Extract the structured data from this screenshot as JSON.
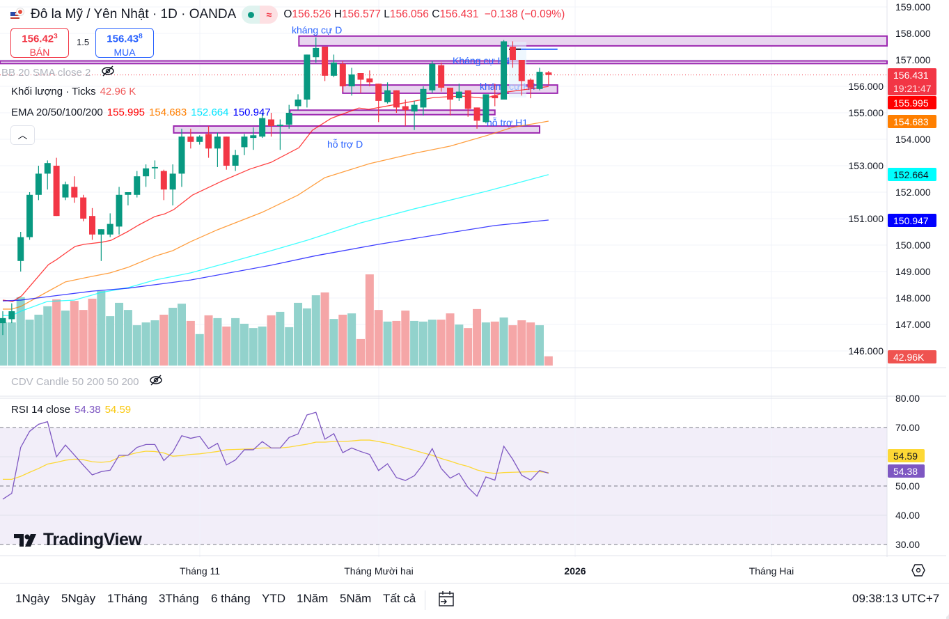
{
  "header": {
    "symbol_title": "Đô la Mỹ / Yên Nhật · 1D · OANDA",
    "market_status_icon": "green-dot-icon",
    "data_mode_icon": "approx-icon",
    "ohlc": {
      "o_label": "O",
      "o": "156.526",
      "h_label": "H",
      "h": "156.577",
      "l_label": "L",
      "l": "156.056",
      "c_label": "C",
      "c": "156.431",
      "change": "−0.138 (−0.09%)"
    }
  },
  "trade": {
    "sell_price": "156.42",
    "sell_sup": "3",
    "sell_label": "BÁN",
    "spread": "1.5",
    "buy_price": "156.43",
    "buy_sup": "8",
    "buy_label": "MUA"
  },
  "legend": {
    "bb": "BB 20 SMA close 2",
    "volume_name": "Khối lượng · Ticks",
    "volume_value": "42.96 K",
    "ema_name": "EMA 20/50/100/200",
    "ema20": "155.995",
    "ema50": "154.683",
    "ema100": "152.664",
    "ema200": "150.947",
    "cdv": "CDV Candle 50 200 50 200",
    "rsi_name": "RSI 14 close",
    "rsi_value": "54.38",
    "rsi_ma_value": "54.59"
  },
  "price_tags": {
    "last_price": "156.431",
    "countdown": "19:21:47",
    "ema20": "155.995",
    "ema50": "154.683",
    "ema100": "152.664",
    "ema200": "150.947",
    "volume": "42.96K",
    "rsi_ma": "54.59",
    "rsi": "54.38"
  },
  "colors": {
    "up": "#089981",
    "down": "#f23645",
    "vol_up": "#92d2cc",
    "vol_down": "#f5a6a7",
    "ema20": "#ff0000",
    "ema50": "#ff7f00",
    "ema100": "#00ffff",
    "ema200": "#0000ff",
    "rsi": "#7e57c2",
    "rsi_ma": "#fdd835",
    "zone": "#9c27b0",
    "zone_fill": "#e8d5ef",
    "annot_text": "#2962ff"
  },
  "time_axis": {
    "labels": [
      "Tháng 11",
      "Tháng Mười hai",
      "2026",
      "Tháng Hai"
    ]
  },
  "toolbar": {
    "ranges": [
      "1Ngày",
      "5Ngày",
      "1Tháng",
      "3Tháng",
      "6 tháng",
      "YTD",
      "1Năm",
      "5Năm",
      "Tất cả"
    ],
    "clock": "09:38:13 UTC+7"
  },
  "logo": "TradingView",
  "chart_data": {
    "type": "candlestick",
    "title": "Đô la Mỹ / Yên Nhật · 1D · OANDA",
    "price_axis": {
      "ticks": [
        "159.000",
        "158.000",
        "157.000",
        "156.000",
        "155.000",
        "154.000",
        "153.000",
        "152.000",
        "151.000",
        "150.000",
        "149.000",
        "148.000",
        "147.000",
        "146.000"
      ],
      "ylim": [
        145.6,
        159.25
      ]
    },
    "candles_ohlc": [
      [
        147.05,
        147.5,
        146.6,
        147.24
      ],
      [
        147.2,
        147.8,
        147.05,
        147.5
      ],
      [
        149.4,
        150.5,
        149.0,
        150.3
      ],
      [
        150.3,
        152.0,
        150.2,
        151.9
      ],
      [
        151.9,
        153.0,
        151.7,
        152.7
      ],
      [
        152.7,
        153.2,
        152.1,
        153.1
      ],
      [
        153.0,
        153.3,
        151.1,
        151.1
      ],
      [
        151.8,
        152.4,
        151.7,
        152.3
      ],
      [
        152.2,
        152.6,
        151.6,
        151.8
      ],
      [
        151.8,
        151.9,
        150.9,
        151.0
      ],
      [
        151.1,
        151.4,
        150.2,
        150.4
      ],
      [
        150.4,
        150.6,
        149.4,
        150.6
      ],
      [
        150.4,
        151.2,
        150.3,
        150.8
      ],
      [
        150.7,
        152.2,
        150.4,
        151.9
      ],
      [
        151.9,
        152.0,
        151.5,
        152.0
      ],
      [
        151.9,
        152.8,
        151.8,
        152.6
      ],
      [
        152.6,
        153.05,
        152.2,
        152.9
      ],
      [
        152.9,
        153.2,
        152.5,
        152.95
      ],
      [
        152.8,
        152.85,
        151.7,
        152.1
      ],
      [
        152.1,
        153.05,
        151.5,
        152.7
      ],
      [
        152.7,
        154.4,
        152.2,
        154.1
      ],
      [
        154.1,
        154.4,
        153.65,
        153.9
      ],
      [
        153.9,
        154.15,
        153.8,
        154.1
      ],
      [
        154.2,
        154.5,
        153.3,
        153.65
      ],
      [
        153.65,
        154.25,
        152.95,
        154.1
      ],
      [
        154.1,
        154.1,
        152.85,
        153.0
      ],
      [
        153.0,
        153.6,
        152.8,
        153.4
      ],
      [
        153.7,
        154.2,
        153.4,
        154.1
      ],
      [
        154.05,
        154.45,
        153.6,
        154.15
      ],
      [
        154.1,
        155.0,
        154.05,
        154.8
      ],
      [
        154.75,
        155.0,
        154.1,
        154.5
      ],
      [
        154.5,
        154.75,
        153.6,
        154.55
      ],
      [
        154.55,
        155.3,
        154.4,
        155.0
      ],
      [
        155.25,
        155.7,
        155.1,
        155.5
      ],
      [
        155.5,
        157.2,
        155.2,
        157.2
      ],
      [
        157.1,
        157.85,
        156.9,
        157.45
      ],
      [
        157.5,
        157.5,
        156.2,
        156.4
      ],
      [
        156.4,
        157.2,
        156.35,
        156.9
      ],
      [
        156.85,
        156.95,
        155.8,
        156.0
      ],
      [
        156.0,
        156.7,
        155.65,
        156.45
      ],
      [
        156.5,
        156.5,
        155.75,
        156.25
      ],
      [
        156.3,
        156.6,
        156.0,
        156.15
      ],
      [
        156.1,
        156.1,
        154.65,
        155.45
      ],
      [
        155.4,
        156.15,
        155.35,
        155.85
      ],
      [
        155.85,
        155.85,
        155.0,
        155.2
      ],
      [
        155.25,
        155.5,
        154.5,
        155.1
      ],
      [
        155.05,
        155.45,
        154.35,
        155.3
      ],
      [
        155.2,
        156.0,
        154.9,
        155.9
      ],
      [
        155.85,
        156.95,
        155.75,
        156.85
      ],
      [
        156.8,
        156.9,
        155.8,
        155.95
      ],
      [
        155.95,
        155.95,
        154.9,
        155.5
      ],
      [
        155.55,
        156.1,
        155.45,
        155.8
      ],
      [
        155.85,
        155.85,
        154.85,
        155.15
      ],
      [
        155.2,
        155.2,
        154.4,
        154.7
      ],
      [
        154.65,
        155.7,
        154.6,
        155.7
      ],
      [
        155.65,
        156.1,
        155.25,
        155.55
      ],
      [
        155.5,
        157.75,
        155.5,
        157.7
      ],
      [
        157.5,
        157.7,
        156.7,
        157.0
      ],
      [
        157.0,
        157.0,
        155.65,
        156.2
      ],
      [
        156.25,
        156.3,
        155.55,
        155.95
      ],
      [
        155.9,
        156.7,
        155.85,
        156.55
      ],
      [
        156.526,
        156.577,
        156.056,
        156.431
      ]
    ],
    "volume_k": [
      200,
      200,
      317,
      213,
      236,
      275,
      307,
      255,
      300,
      258,
      310,
      346,
      229,
      291,
      258,
      187,
      200,
      210,
      236,
      268,
      287,
      207,
      146,
      233,
      220,
      181,
      220,
      194,
      174,
      181,
      233,
      249,
      178,
      291,
      265,
      326,
      339,
      216,
      236,
      242,
      123,
      423,
      258,
      204,
      207,
      255,
      207,
      204,
      213,
      213,
      242,
      190,
      174,
      262,
      200,
      204,
      223,
      187,
      210,
      200,
      187,
      42.96
    ],
    "ema": [
      {
        "name": "EMA 20",
        "points": [
          [
            0,
            147.92
          ],
          [
            1.1,
            147.87
          ],
          [
            2.1,
            148.08
          ],
          [
            5.1,
            149.26
          ],
          [
            6,
            149.45
          ],
          [
            7.2,
            149.74
          ],
          [
            8.1,
            149.95
          ],
          [
            9.1,
            150.03
          ],
          [
            11.1,
            150.11
          ],
          [
            12.1,
            150.18
          ],
          [
            13.9,
            150.5
          ],
          [
            15.2,
            150.76
          ],
          [
            17,
            151.08
          ],
          [
            18.1,
            151.18
          ],
          [
            19.1,
            151.34
          ],
          [
            21.2,
            151.89
          ],
          [
            24.5,
            152.42
          ],
          [
            27.6,
            152.87
          ],
          [
            30,
            153.13
          ],
          [
            33.1,
            153.68
          ],
          [
            34.6,
            154.34
          ],
          [
            36.7,
            154.79
          ],
          [
            39.8,
            155.18
          ],
          [
            40.9,
            155.13
          ],
          [
            48.2,
            155.58
          ],
          [
            51.3,
            155.63
          ],
          [
            53.9,
            155.55
          ],
          [
            56.4,
            155.79
          ],
          [
            61,
            155.995
          ]
        ]
      },
      {
        "name": "EMA 50",
        "points": [
          [
            0,
            147.58
          ],
          [
            1,
            147.58
          ],
          [
            2,
            147.68
          ],
          [
            5,
            148.24
          ],
          [
            7,
            148.61
          ],
          [
            10,
            148.82
          ],
          [
            12,
            148.95
          ],
          [
            14,
            149.16
          ],
          [
            17,
            149.58
          ],
          [
            19,
            149.79
          ],
          [
            21,
            150.13
          ],
          [
            24,
            150.58
          ],
          [
            29,
            151.24
          ],
          [
            33,
            151.89
          ],
          [
            36,
            152.55
          ],
          [
            41,
            153.08
          ],
          [
            46,
            153.47
          ],
          [
            50,
            153.74
          ],
          [
            54,
            154.13
          ],
          [
            57,
            154.45
          ],
          [
            61,
            154.683
          ]
        ]
      },
      {
        "name": "EMA 100",
        "points": [
          [
            0,
            147.34
          ],
          [
            1,
            147.34
          ],
          [
            2,
            147.5
          ],
          [
            5,
            147.87
          ],
          [
            8,
            147.92
          ],
          [
            11,
            148.21
          ],
          [
            14,
            148.39
          ],
          [
            17,
            148.68
          ],
          [
            21,
            148.95
          ],
          [
            25,
            149.32
          ],
          [
            30,
            149.79
          ],
          [
            34,
            150.18
          ],
          [
            40,
            150.84
          ],
          [
            46,
            151.37
          ],
          [
            54,
            152.03
          ],
          [
            61,
            152.664
          ]
        ]
      },
      {
        "name": "EMA 200",
        "points": [
          [
            0,
            147.89
          ],
          [
            2,
            147.92
          ],
          [
            5,
            148.05
          ],
          [
            10,
            148.26
          ],
          [
            14,
            148.37
          ],
          [
            21,
            148.68
          ],
          [
            30,
            149.24
          ],
          [
            35,
            149.6
          ],
          [
            42,
            150.03
          ],
          [
            50,
            150.47
          ],
          [
            55,
            150.74
          ],
          [
            61,
            150.947
          ]
        ]
      }
    ],
    "zones": [
      {
        "label": "kháng cự D",
        "from_bar": 33.1,
        "to_bar": "end",
        "top": 157.9,
        "bottom": 157.53
      },
      {
        "label": "Kháng cự H4",
        "from_bar": "start",
        "to_bar": "end",
        "top": 156.96,
        "bottom": 156.86
      },
      {
        "label": "kháng cự H4",
        "from_bar": 38.0,
        "to_bar": 62.0,
        "top": 156.05,
        "bottom": 155.74
      },
      {
        "label": "",
        "from_bar": 32.1,
        "to_bar": 55.0,
        "top": 155.1,
        "bottom": 154.93
      },
      {
        "label": "hỗ trợ D",
        "from_bar": 19.1,
        "to_bar": 60.0,
        "top": 154.5,
        "bottom": 154.24
      },
      {
        "label": "hỗ trợ H1",
        "from_bar": 54.1,
        "to_bar": 54.1,
        "top": 154.45,
        "bottom": 154.45
      }
    ],
    "target_line": {
      "price": 157.4,
      "from_bar": 56.8,
      "to_bar": 62.0
    },
    "rsi": {
      "levels": [
        70,
        50,
        30
      ],
      "ticks": [
        "80.00",
        "70.00",
        "50.00",
        "40.00",
        "30.00"
      ],
      "ylim": [
        27,
        81
      ],
      "values": [
        45.5,
        47.5,
        63.2,
        68.7,
        71.1,
        72.0,
        60.0,
        64.0,
        60.6,
        57.1,
        53.8,
        54.9,
        55.4,
        60.5,
        60.5,
        63.2,
        64.2,
        64.2,
        58.7,
        61.6,
        67.2,
        66.3,
        67.0,
        62.8,
        64.6,
        57.2,
        58.9,
        62.4,
        62.4,
        65.2,
        63.0,
        63.0,
        66.6,
        67.8,
        74.3,
        75.2,
        66.0,
        67.9,
        61.4,
        63.0,
        61.8,
        60.8,
        55.3,
        57.6,
        52.9,
        51.9,
        53.5,
        57.5,
        62.8,
        56.0,
        52.7,
        54.3,
        49.5,
        46.5,
        53.1,
        52.0,
        63.6,
        59.1,
        53.7,
        52.0,
        55.3,
        54.38
      ],
      "ma": [
        52.3,
        52.3,
        53.3,
        54.7,
        56.0,
        57.5,
        58.1,
        58.8,
        59.2,
        59.0,
        58.3,
        58.1,
        58.4,
        59.8,
        60.6,
        61.4,
        61.9,
        61.8,
        61.3,
        60.2,
        60.4,
        60.8,
        61.0,
        61.4,
        61.8,
        62.4,
        62.5,
        62.6,
        62.7,
        63.0,
        63.0,
        63.0,
        63.3,
        63.8,
        64.3,
        65.0,
        65.0,
        65.2,
        65.2,
        65.4,
        65.7,
        65.7,
        65.2,
        64.6,
        63.8,
        63.0,
        62.2,
        61.3,
        60.5,
        59.4,
        58.5,
        57.5,
        56.7,
        55.5,
        54.7,
        54.3,
        54.6,
        54.7,
        54.8,
        54.9,
        54.9,
        54.59
      ]
    }
  }
}
